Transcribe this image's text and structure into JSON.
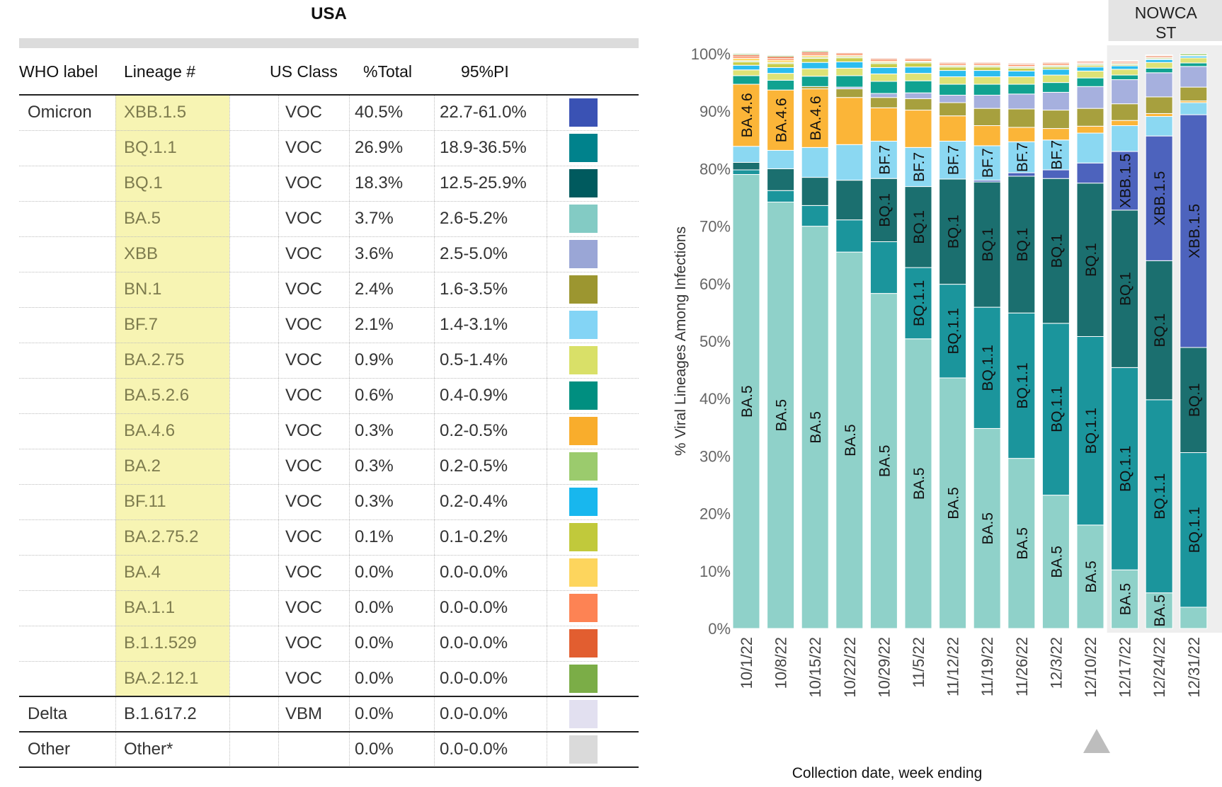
{
  "table": {
    "title": "USA",
    "headers": {
      "who": "WHO label",
      "lineage": "Lineage #",
      "class": "US Class",
      "total": "%Total",
      "pi": "95%PI"
    },
    "groups": [
      {
        "who": "Omicron",
        "rows": 17
      },
      {
        "who": "Delta",
        "rows": 1
      },
      {
        "who": "Other",
        "rows": 1
      }
    ],
    "rows": [
      {
        "lineage": "XBB.1.5",
        "class": "VOC",
        "total": "40.5%",
        "pi": "22.7-61.0%",
        "color": "#3a52b4"
      },
      {
        "lineage": "BQ.1.1",
        "class": "VOC",
        "total": "26.9%",
        "pi": "18.9-36.5%",
        "color": "#00828c"
      },
      {
        "lineage": "BQ.1",
        "class": "VOC",
        "total": "18.3%",
        "pi": "12.5-25.9%",
        "color": "#005a5e"
      },
      {
        "lineage": "BA.5",
        "class": "VOC",
        "total": "3.7%",
        "pi": "2.6-5.2%",
        "color": "#83cbc4"
      },
      {
        "lineage": "XBB",
        "class": "VOC",
        "total": "3.6%",
        "pi": "2.5-5.0%",
        "color": "#9aa6d6"
      },
      {
        "lineage": "BN.1",
        "class": "VOC",
        "total": "2.4%",
        "pi": "1.6-3.5%",
        "color": "#9c9630"
      },
      {
        "lineage": "BF.7",
        "class": "VOC",
        "total": "2.1%",
        "pi": "1.4-3.1%",
        "color": "#83d4f5"
      },
      {
        "lineage": "BA.2.75",
        "class": "VOC",
        "total": "0.9%",
        "pi": "0.5-1.4%",
        "color": "#d9e068"
      },
      {
        "lineage": "BA.5.2.6",
        "class": "VOC",
        "total": "0.6%",
        "pi": "0.4-0.9%",
        "color": "#008f80"
      },
      {
        "lineage": "BA.4.6",
        "class": "VOC",
        "total": "0.3%",
        "pi": "0.2-0.5%",
        "color": "#f9ad2c"
      },
      {
        "lineage": "BA.2",
        "class": "VOC",
        "total": "0.3%",
        "pi": "0.2-0.5%",
        "color": "#9bcb6d"
      },
      {
        "lineage": "BF.11",
        "class": "VOC",
        "total": "0.3%",
        "pi": "0.2-0.4%",
        "color": "#18b7ee"
      },
      {
        "lineage": "BA.2.75.2",
        "class": "VOC",
        "total": "0.1%",
        "pi": "0.1-0.2%",
        "color": "#c1c93b"
      },
      {
        "lineage": "BA.4",
        "class": "VOC",
        "total": "0.0%",
        "pi": "0.0-0.0%",
        "color": "#fdd55d"
      },
      {
        "lineage": "BA.1.1",
        "class": "VOC",
        "total": "0.0%",
        "pi": "0.0-0.0%",
        "color": "#fd8354"
      },
      {
        "lineage": "B.1.1.529",
        "class": "VOC",
        "total": "0.0%",
        "pi": "0.0-0.0%",
        "color": "#e25e30"
      },
      {
        "lineage": "BA.2.12.1",
        "class": "VOC",
        "total": "0.0%",
        "pi": "0.0-0.0%",
        "color": "#7bad47"
      },
      {
        "lineage": "B.1.617.2",
        "class": "VBM",
        "total": "0.0%",
        "pi": "0.0-0.0%",
        "color": "#e2e0f0"
      },
      {
        "lineage": "Other*",
        "class": "",
        "total": "0.0%",
        "pi": "0.0-0.0%",
        "color": "#dadada"
      }
    ]
  },
  "chart_data": {
    "type": "bar",
    "stacked": true,
    "orientation": "vertical",
    "title": "",
    "xlabel": "Collection date, week ending",
    "ylabel": "% Viral Lineages Among Infections",
    "ylim": [
      0,
      100
    ],
    "yticks": [
      "0%",
      "10%",
      "20%",
      "30%",
      "40%",
      "50%",
      "60%",
      "70%",
      "80%",
      "90%",
      "100%"
    ],
    "nowcast_label": "NOWCAST",
    "nowcast_label_lines": [
      "NOWCA",
      "ST"
    ],
    "nowcast_categories": [
      "12/17/22",
      "12/24/22",
      "12/31/22"
    ],
    "categories": [
      "10/1/22",
      "10/8/22",
      "10/15/22",
      "10/22/22",
      "10/29/22",
      "11/5/22",
      "11/12/22",
      "11/19/22",
      "11/26/22",
      "12/3/22",
      "12/10/22",
      "12/17/22",
      "12/24/22",
      "12/31/22"
    ],
    "series": [
      {
        "name": "BA.5",
        "color": "#8fd1c9",
        "values": [
          79,
          74.2,
          70,
          65.5,
          58.3,
          50.4,
          43.6,
          34.8,
          29.6,
          23.2,
          18,
          10.2,
          6.2,
          3.7
        ]
      },
      {
        "name": "BQ.1.1",
        "color": "#1b959c",
        "values": [
          0.8,
          2,
          3.6,
          5.6,
          9,
          12.4,
          16.3,
          21.1,
          25.3,
          29.9,
          32.8,
          35.2,
          33.6,
          26.9
        ]
      },
      {
        "name": "BQ.1",
        "color": "#1b6f6f",
        "values": [
          1.3,
          3.8,
          4.9,
          6.9,
          11,
          14.1,
          18.3,
          21.8,
          23.8,
          25.2,
          26.7,
          27.4,
          24.2,
          18.3
        ]
      },
      {
        "name": "XBB.1.5",
        "color": "#4d63bd",
        "values": [
          0,
          0,
          0,
          0,
          0,
          0,
          0,
          0.3,
          0.6,
          1.5,
          3.5,
          10.2,
          21.7,
          40.5
        ]
      },
      {
        "name": "BF.7",
        "color": "#8bd8f2",
        "values": [
          2.8,
          3.2,
          5.2,
          6.2,
          6.5,
          6.8,
          6.6,
          6,
          5.4,
          5.2,
          5.2,
          4.5,
          3.4,
          2.1
        ]
      },
      {
        "name": "BA.4.6",
        "color": "#fbb538",
        "values": [
          10.8,
          10.5,
          10.2,
          8.2,
          5.8,
          6.5,
          4.4,
          3.5,
          2.5,
          2,
          1.2,
          0.9,
          0.5,
          0.3
        ]
      },
      {
        "name": "BN.1",
        "color": "#a7a03e",
        "values": [
          0,
          0,
          0.4,
          1.5,
          1.8,
          2,
          2.3,
          3,
          3.2,
          3.2,
          3.1,
          2.9,
          2.9,
          2.4
        ]
      },
      {
        "name": "XBB",
        "color": "#a6b0de",
        "values": [
          0,
          0,
          0,
          0.3,
          0.7,
          1,
          1.3,
          2.3,
          2.6,
          3.1,
          3.8,
          4.2,
          4.2,
          3.6
        ]
      },
      {
        "name": "BA.5.2.6",
        "color": "#10a291",
        "values": [
          1.5,
          1.7,
          1.8,
          2,
          2.1,
          2.1,
          1.9,
          1.9,
          1.7,
          1.7,
          1.5,
          0.8,
          0.8,
          0.6
        ]
      },
      {
        "name": "BA.2.75",
        "color": "#dde276",
        "values": [
          1,
          1.2,
          1.3,
          1.3,
          1.3,
          1.3,
          1.3,
          1.3,
          1.3,
          1.3,
          1.2,
          1,
          1,
          0.9
        ]
      },
      {
        "name": "BF.11",
        "color": "#2bbdef",
        "values": [
          0.8,
          1,
          1.1,
          1.1,
          1.1,
          1.1,
          1.1,
          1.1,
          1,
          1,
          0.7,
          0.6,
          0.5,
          0.3
        ]
      },
      {
        "name": "BA.2.75.2",
        "color": "#c8cd4c",
        "values": [
          0.6,
          0.7,
          0.7,
          0.7,
          0.7,
          0.7,
          0.6,
          0.6,
          0.5,
          0.4,
          0.3,
          0.2,
          0.1,
          0.1
        ]
      },
      {
        "name": "BA.2",
        "color": "#a3cf78",
        "values": [
          0.2,
          0.2,
          0.2,
          0.2,
          0.2,
          0.2,
          0.2,
          0.2,
          0.2,
          0.2,
          0.2,
          0.2,
          0.2,
          0.3
        ]
      },
      {
        "name": "BA.4",
        "color": "#fdd86a",
        "values": [
          0.4,
          0.4,
          0.3,
          0.2,
          0.2,
          0.1,
          0.1,
          0.1,
          0.1,
          0.1,
          0.1,
          0,
          0,
          0
        ]
      },
      {
        "name": "BA.1.1",
        "color": "#fd8c5e",
        "values": [
          0.3,
          0.3,
          0.3,
          0.3,
          0.3,
          0.3,
          0.3,
          0.3,
          0.3,
          0.3,
          0.2,
          0.2,
          0.2,
          0
        ]
      },
      {
        "name": "B.1.1.529",
        "color": "#e46a3b",
        "values": [
          0.3,
          0.3,
          0.3,
          0.2,
          0.2,
          0.2,
          0.2,
          0.2,
          0.2,
          0.2,
          0.2,
          0.2,
          0.2,
          0
        ]
      },
      {
        "name": "BA.2.12.1",
        "color": "#85b452",
        "values": [
          0.2,
          0.2,
          0.2,
          0.1,
          0.1,
          0.1,
          0.1,
          0.1,
          0.1,
          0.1,
          0.1,
          0.1,
          0.1,
          0
        ]
      }
    ],
    "bar_labels": [
      {
        "category": "10/1/22",
        "series": "BA.5",
        "text": "BA.5"
      },
      {
        "category": "10/1/22",
        "series": "BA.4.6",
        "text": "BA.4.6"
      },
      {
        "category": "10/8/22",
        "series": "BA.5",
        "text": "BA.5"
      },
      {
        "category": "10/8/22",
        "series": "BA.4.6",
        "text": "BA.4.6"
      },
      {
        "category": "10/15/22",
        "series": "BA.5",
        "text": "BA.5"
      },
      {
        "category": "10/15/22",
        "series": "BA.4.6",
        "text": "BA.4.6"
      },
      {
        "category": "10/22/22",
        "series": "BA.5",
        "text": "BA.5"
      },
      {
        "category": "10/29/22",
        "series": "BA.5",
        "text": "BA.5"
      },
      {
        "category": "10/29/22",
        "series": "BQ.1",
        "text": "BQ.1"
      },
      {
        "category": "10/29/22",
        "series": "BF.7",
        "text": "BF.7"
      },
      {
        "category": "11/5/22",
        "series": "BA.5",
        "text": "BA.5"
      },
      {
        "category": "11/5/22",
        "series": "BQ.1.1",
        "text": "BQ.1.1"
      },
      {
        "category": "11/5/22",
        "series": "BQ.1",
        "text": "BQ.1"
      },
      {
        "category": "11/5/22",
        "series": "BF.7",
        "text": "BF.7"
      },
      {
        "category": "11/12/22",
        "series": "BA.5",
        "text": "BA.5"
      },
      {
        "category": "11/12/22",
        "series": "BQ.1.1",
        "text": "BQ.1.1"
      },
      {
        "category": "11/12/22",
        "series": "BQ.1",
        "text": "BQ.1"
      },
      {
        "category": "11/12/22",
        "series": "BF.7",
        "text": "BF.7"
      },
      {
        "category": "11/19/22",
        "series": "BA.5",
        "text": "BA.5"
      },
      {
        "category": "11/19/22",
        "series": "BQ.1.1",
        "text": "BQ.1.1"
      },
      {
        "category": "11/19/22",
        "series": "BQ.1",
        "text": "BQ.1"
      },
      {
        "category": "11/19/22",
        "series": "BF.7",
        "text": "BF.7"
      },
      {
        "category": "11/26/22",
        "series": "BA.5",
        "text": "BA.5"
      },
      {
        "category": "11/26/22",
        "series": "BQ.1.1",
        "text": "BQ.1.1"
      },
      {
        "category": "11/26/22",
        "series": "BQ.1",
        "text": "BQ.1"
      },
      {
        "category": "11/26/22",
        "series": "BF.7",
        "text": "BF.7"
      },
      {
        "category": "12/3/22",
        "series": "BA.5",
        "text": "BA.5"
      },
      {
        "category": "12/3/22",
        "series": "BQ.1.1",
        "text": "BQ.1.1"
      },
      {
        "category": "12/3/22",
        "series": "BQ.1",
        "text": "BQ.1"
      },
      {
        "category": "12/3/22",
        "series": "BF.7",
        "text": "BF.7"
      },
      {
        "category": "12/10/22",
        "series": "BA.5",
        "text": "BA.5"
      },
      {
        "category": "12/10/22",
        "series": "BQ.1.1",
        "text": "BQ.1.1"
      },
      {
        "category": "12/10/22",
        "series": "BQ.1",
        "text": "BQ.1"
      },
      {
        "category": "12/17/22",
        "series": "BA.5",
        "text": "BA.5"
      },
      {
        "category": "12/17/22",
        "series": "BQ.1.1",
        "text": "BQ.1.1"
      },
      {
        "category": "12/17/22",
        "series": "BQ.1",
        "text": "BQ.1"
      },
      {
        "category": "12/17/22",
        "series": "XBB.1.5",
        "text": "XBB.1.5"
      },
      {
        "category": "12/24/22",
        "series": "BA.5",
        "text": "BA.5"
      },
      {
        "category": "12/24/22",
        "series": "BQ.1.1",
        "text": "BQ.1.1"
      },
      {
        "category": "12/24/22",
        "series": "BQ.1",
        "text": "BQ.1"
      },
      {
        "category": "12/24/22",
        "series": "XBB.1.5",
        "text": "XBB.1.5"
      },
      {
        "category": "12/31/22",
        "series": "BQ.1.1",
        "text": "BQ.1.1"
      },
      {
        "category": "12/31/22",
        "series": "BQ.1",
        "text": "BQ.1"
      },
      {
        "category": "12/31/22",
        "series": "XBB.1.5",
        "text": "XBB.1.5"
      }
    ],
    "grid": false,
    "legend": "none"
  }
}
